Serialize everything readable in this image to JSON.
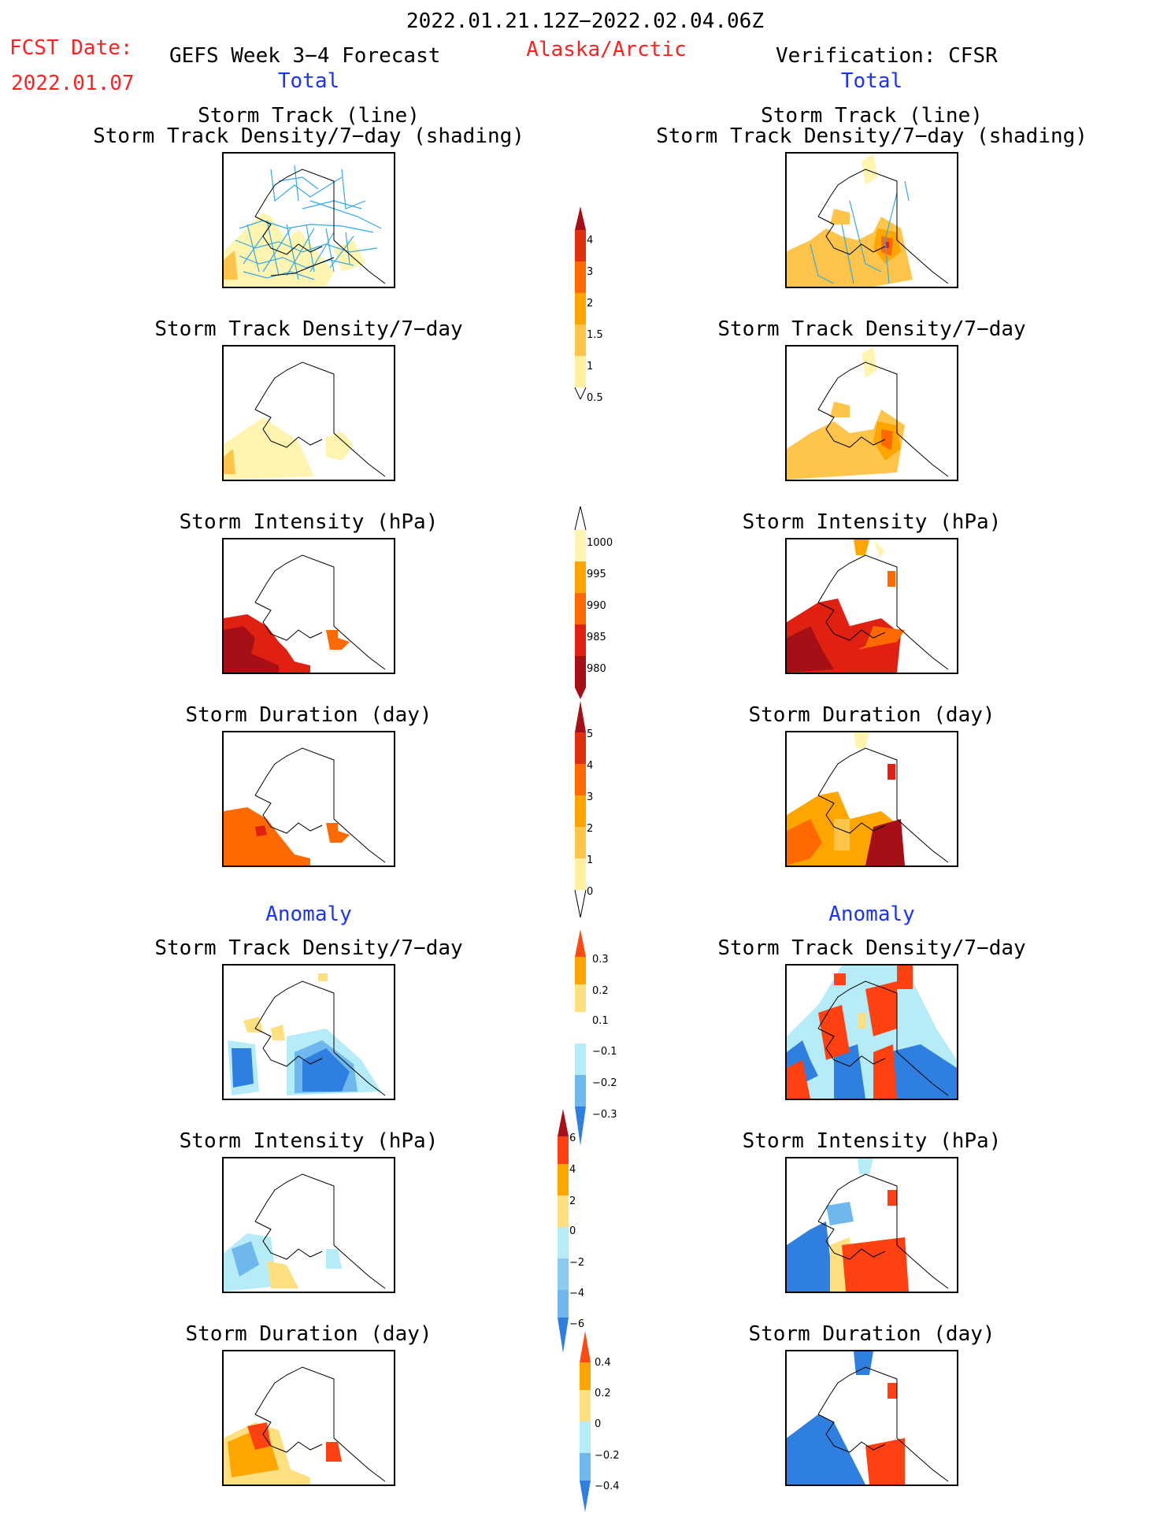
{
  "header": {
    "date_range": "2022.01.21.12Z−2022.02.04.06Z",
    "fcst_label": "FCST Date:",
    "fcst_date": "2022.01.07",
    "forecast_title": "GEFS Week 3−4 Forecast",
    "region": "Alaska/Arctic",
    "verification": "Verification: CFSR"
  },
  "sections": {
    "total_left": "Total",
    "total_right": "Total",
    "anomaly_left": "Anomaly",
    "anomaly_right": "Anomaly"
  },
  "panel_titles": {
    "track_line": "Storm Track (line)",
    "track_shading": "Storm Track Density/7−day (shading)",
    "density": "Storm Track Density/7−day",
    "intensity": "Storm Intensity (hPa)",
    "duration": "Storm Duration (day)"
  },
  "colorbars": {
    "density_total": {
      "labels": [
        "4",
        "3",
        "2",
        "1.5",
        "1",
        "0.5"
      ],
      "colors": [
        "#a50f15",
        "#e03010",
        "#ff6a00",
        "#ffa500",
        "#ffc44a",
        "#fff0a0"
      ]
    },
    "intensity_total": {
      "labels": [
        "1000",
        "995",
        "990",
        "985",
        "980"
      ],
      "colors": [
        "#fff5b0",
        "#ffa500",
        "#ff6a00",
        "#e02010",
        "#a50f15"
      ]
    },
    "duration_total": {
      "labels": [
        "5",
        "4",
        "3",
        "2",
        "1",
        "0"
      ],
      "colors": [
        "#a50f15",
        "#e03010",
        "#ff6a00",
        "#ffa500",
        "#ffc44a",
        "#fff0a0"
      ]
    },
    "density_anom": {
      "labels": [
        "0.3",
        "0.2",
        "0.1",
        "−0.1",
        "−0.2",
        "−0.3"
      ],
      "colors": [
        "#ff4a10",
        "#ffa500",
        "#ffe080",
        "#ffffff",
        "#b5ecf8",
        "#6fb8ee",
        "#2f7fe0"
      ]
    },
    "intensity_anom": {
      "labels": [
        "6",
        "4",
        "2",
        "0",
        "−2",
        "−4",
        "−6"
      ],
      "colors": [
        "#a50f15",
        "#ff4010",
        "#ffa500",
        "#ffe080",
        "#b5ecf8",
        "#8ccaf2",
        "#6fb8ee",
        "#2f7fe0"
      ]
    },
    "duration_anom": {
      "labels": [
        "0.4",
        "0.2",
        "0",
        "−0.2",
        "−0.4"
      ],
      "colors": [
        "#ff4a10",
        "#ffa500",
        "#ffe080",
        "#b5ecf8",
        "#6fb8ee",
        "#2f7fe0"
      ]
    }
  }
}
